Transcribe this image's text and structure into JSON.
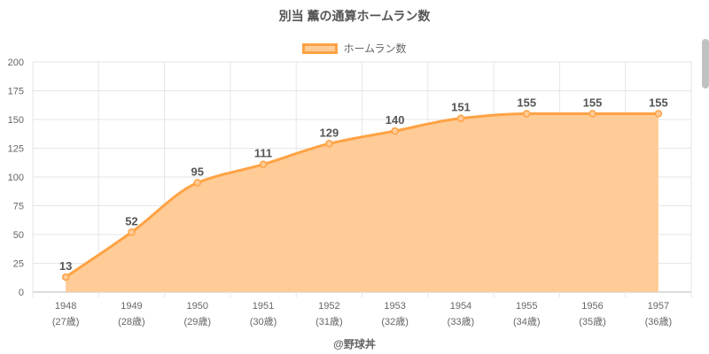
{
  "colors": {
    "line": "#ffa244",
    "fill": "#ffcb96",
    "grid": "#e6e6e6",
    "tick_text": "#666666",
    "label_text": "#555555"
  },
  "credit": "@野球丼",
  "chart_data": {
    "type": "area",
    "title": "別当 薫の通算ホームラン数",
    "xlabel": "",
    "ylabel": "",
    "categories": [
      "1948",
      "1949",
      "1950",
      "1951",
      "1952",
      "1953",
      "1954",
      "1955",
      "1956",
      "1957"
    ],
    "category_sublabels": [
      "(27歳)",
      "(28歳)",
      "(29歳)",
      "(30歳)",
      "(31歳)",
      "(32歳)",
      "(33歳)",
      "(34歳)",
      "(35歳)",
      "(36歳)"
    ],
    "series": [
      {
        "name": "ホームラン数",
        "values": [
          13,
          52,
          95,
          111,
          129,
          140,
          151,
          155,
          155,
          155
        ]
      }
    ],
    "ylim": [
      0,
      200
    ],
    "yticks": [
      0,
      25,
      50,
      75,
      100,
      125,
      150,
      175,
      200
    ],
    "grid": true,
    "legend_position": "top",
    "data_labels": true
  }
}
